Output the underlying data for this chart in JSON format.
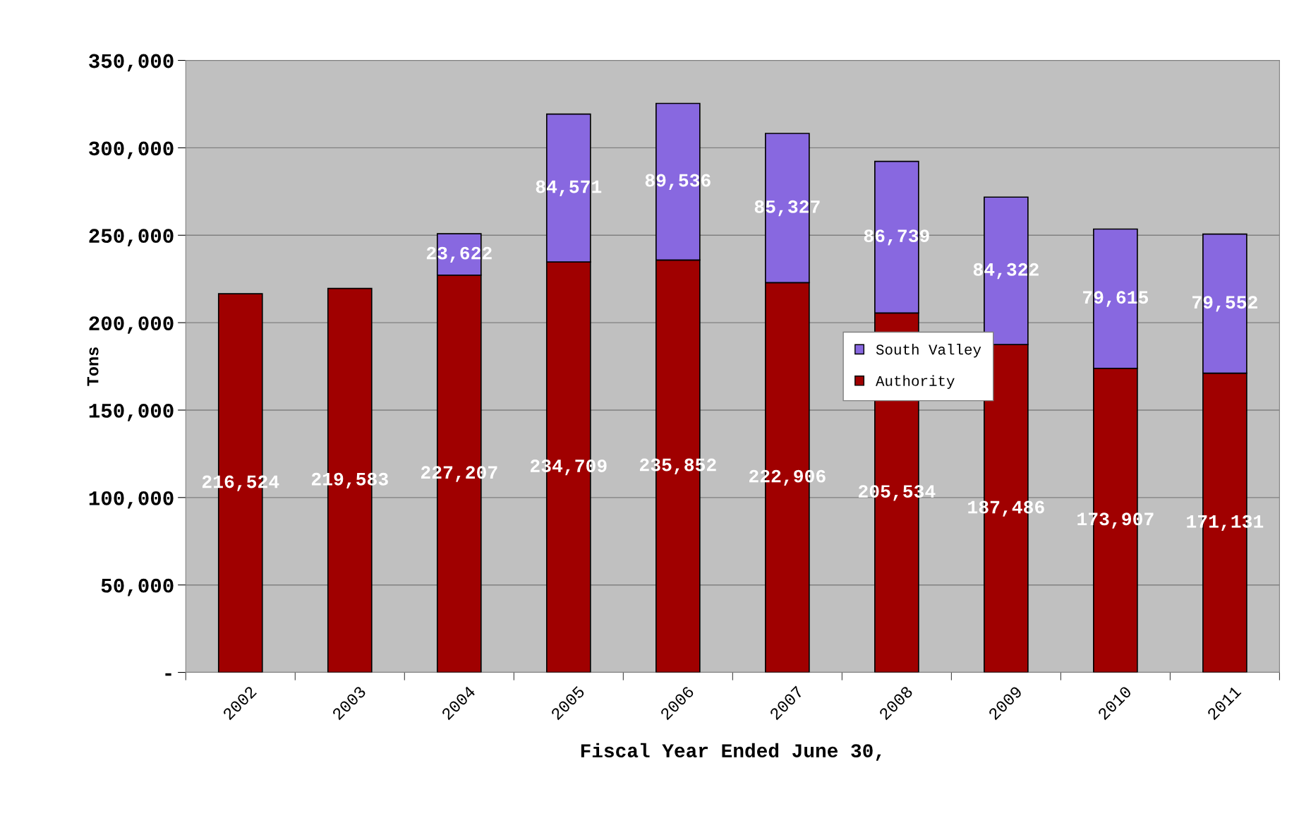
{
  "chart_data": {
    "type": "bar",
    "stacked": true,
    "xlabel": "Fiscal Year Ended June 30,",
    "ylabel": "Tons",
    "categories": [
      "2002",
      "2003",
      "2004",
      "2005",
      "2006",
      "2007",
      "2008",
      "2009",
      "2010",
      "2011"
    ],
    "series": [
      {
        "name": "Authority",
        "color": "#a00000",
        "values": [
          216524,
          219583,
          227207,
          234709,
          235852,
          222906,
          205534,
          187486,
          173907,
          171131
        ],
        "value_labels": [
          "216,524",
          "219,583",
          "227,207",
          "234,709",
          "235,852",
          "222,906",
          "205,534",
          "187,486",
          "173,907",
          "171,131"
        ]
      },
      {
        "name": "South Valley",
        "color": "#8868e0",
        "values": [
          null,
          null,
          23622,
          84571,
          89536,
          85327,
          86739,
          84322,
          79615,
          79552
        ],
        "value_labels": [
          null,
          null,
          "23,622",
          "84,571",
          "89,536",
          "85,327",
          "86,739",
          "84,322",
          "79,615",
          "79,552"
        ]
      }
    ],
    "ylim": [
      0,
      350000
    ],
    "yticks": [
      {
        "value": 0,
        "label": "-"
      },
      {
        "value": 50000,
        "label": "50,000"
      },
      {
        "value": 100000,
        "label": "100,000"
      },
      {
        "value": 150000,
        "label": "150,000"
      },
      {
        "value": 200000,
        "label": "200,000"
      },
      {
        "value": 250000,
        "label": "250,000"
      },
      {
        "value": 300000,
        "label": "300,000"
      },
      {
        "value": 350000,
        "label": "350,000"
      }
    ],
    "grid": "y",
    "legend": "right"
  }
}
